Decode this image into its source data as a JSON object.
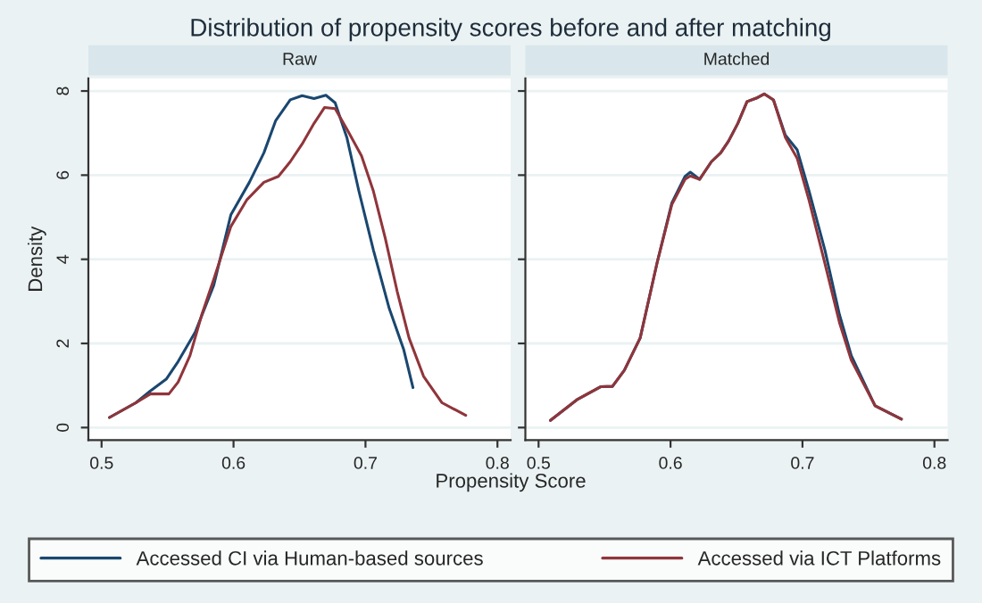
{
  "chart_data": [
    {
      "type": "line",
      "title": "Distribution of propensity scores before and after matching",
      "subtitle": "Raw",
      "xlabel": "Propensity Score",
      "ylabel": "Density",
      "xlim": [
        0.49,
        0.81
      ],
      "xticks": [
        0.5,
        0.6,
        0.7,
        0.8
      ],
      "ylim": [
        -0.3,
        8.3
      ],
      "yticks": [
        0,
        2,
        4,
        6,
        8
      ],
      "grid": "y",
      "legend": "bottom",
      "series": [
        {
          "name": "Accessed CI via Human-based sources",
          "color": "#1a476f",
          "x": [
            0.506,
            0.526,
            0.537,
            0.549,
            0.558,
            0.571,
            0.585,
            0.598,
            0.612,
            0.623,
            0.632,
            0.643,
            0.652,
            0.661,
            0.67,
            0.677,
            0.686,
            0.695,
            0.706,
            0.718,
            0.729,
            0.736
          ],
          "values": [
            0.24,
            0.59,
            0.87,
            1.15,
            1.57,
            2.27,
            3.38,
            5.06,
            5.83,
            6.53,
            7.3,
            7.79,
            7.89,
            7.82,
            7.9,
            7.72,
            6.88,
            5.62,
            4.22,
            2.83,
            1.85,
            0.95
          ]
        },
        {
          "name": "Accessed via ICT Platforms",
          "color": "#90353b",
          "x": [
            0.506,
            0.526,
            0.537,
            0.551,
            0.558,
            0.567,
            0.576,
            0.585,
            0.598,
            0.61,
            0.623,
            0.634,
            0.643,
            0.652,
            0.661,
            0.669,
            0.677,
            0.686,
            0.697,
            0.706,
            0.715,
            0.724,
            0.733,
            0.744,
            0.758,
            0.776
          ],
          "values": [
            0.24,
            0.59,
            0.8,
            0.8,
            1.08,
            1.71,
            2.69,
            3.52,
            4.78,
            5.41,
            5.83,
            5.97,
            6.32,
            6.74,
            7.23,
            7.61,
            7.58,
            7.09,
            6.46,
            5.62,
            4.5,
            3.24,
            2.13,
            1.22,
            0.59,
            0.29
          ]
        }
      ]
    },
    {
      "type": "line",
      "subtitle": "Matched",
      "tick_labels": "x",
      "xlim": [
        0.49,
        0.81
      ],
      "xticks": [
        0.5,
        0.6,
        0.7,
        0.8
      ],
      "ylim": [
        -0.3,
        8.3
      ],
      "yticks": [
        0,
        2,
        4,
        6,
        8
      ],
      "grid": "y",
      "series": [
        {
          "color": "#1a476f",
          "x": [
            0.509,
            0.529,
            0.547,
            0.556,
            0.565,
            0.577,
            0.59,
            0.601,
            0.611,
            0.615,
            0.622,
            0.631,
            0.638,
            0.644,
            0.651,
            0.658,
            0.665,
            0.671,
            0.678,
            0.687,
            0.696,
            0.705,
            0.717,
            0.728,
            0.737,
            0.755,
            0.775
          ],
          "values": [
            0.17,
            0.66,
            0.97,
            0.98,
            1.36,
            2.13,
            3.94,
            5.34,
            5.97,
            6.07,
            5.9,
            6.32,
            6.53,
            6.81,
            7.23,
            7.75,
            7.83,
            7.93,
            7.79,
            6.95,
            6.6,
            5.62,
            4.22,
            2.69,
            1.71,
            0.52,
            0.2
          ]
        },
        {
          "color": "#90353b",
          "x": [
            0.509,
            0.529,
            0.547,
            0.556,
            0.565,
            0.577,
            0.59,
            0.601,
            0.611,
            0.615,
            0.622,
            0.631,
            0.638,
            0.644,
            0.651,
            0.658,
            0.665,
            0.671,
            0.678,
            0.687,
            0.696,
            0.705,
            0.717,
            0.728,
            0.737,
            0.755,
            0.775
          ],
          "values": [
            0.17,
            0.66,
            0.97,
            0.98,
            1.36,
            2.13,
            3.94,
            5.3,
            5.9,
            5.98,
            5.9,
            6.32,
            6.53,
            6.81,
            7.23,
            7.75,
            7.83,
            7.93,
            7.79,
            6.9,
            6.4,
            5.4,
            3.9,
            2.5,
            1.6,
            0.52,
            0.2
          ]
        }
      ]
    }
  ]
}
